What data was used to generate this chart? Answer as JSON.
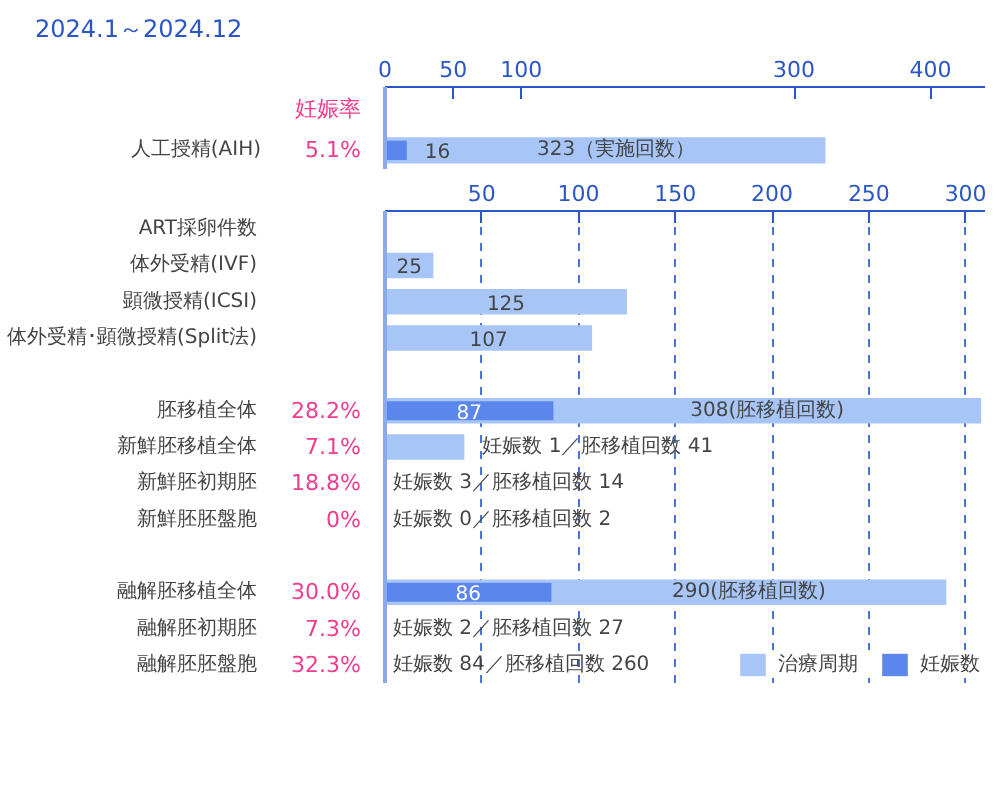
{
  "chart_data": [
    {
      "type": "bar",
      "orientation": "horizontal",
      "title": "2024.1～2024.12",
      "categories": [
        "人工授精(AIH)"
      ],
      "y2_categories": [
        "5.1%"
      ],
      "xlim": [
        0,
        440
      ],
      "xticks": [
        0,
        50,
        100,
        300,
        400
      ],
      "grid": false,
      "series": [
        {
          "color": "#a7c6f7",
          "values": [
            323
          ],
          "value_labels": [
            "323（実施回数）"
          ]
        },
        {
          "color": "#5b86ec",
          "values": [
            16
          ],
          "value_labels": [
            "16"
          ]
        }
      ],
      "annotations": [
        "妊娠率"
      ]
    },
    {
      "type": "bar",
      "orientation": "horizontal",
      "categories": [
        "ART採卵件数",
        "体外受精(IVF)",
        "顕微授精(ICSI)",
        "体外受精･顕微授精(Split法)",
        null,
        "胚移植全体",
        "新鮮胚移植全体",
        "新鮮胚初期胚",
        "新鮮胚胚盤胞",
        null,
        "融解胚移植全体",
        "融解胚初期胚",
        "融解胚胚盤胞"
      ],
      "y2_categories": [
        null,
        null,
        null,
        null,
        null,
        "28.2%",
        "7.1%",
        "18.8%",
        "0%",
        null,
        "30.0%",
        "7.3%",
        "32.3%"
      ],
      "xlim": [
        0,
        310
      ],
      "xticks": [
        50,
        100,
        150,
        200,
        250,
        300
      ],
      "grid": "x",
      "legend": "bottom right",
      "series": [
        {
          "name": "治療周期",
          "color": "#a7c6f7",
          "values": [
            null,
            25,
            125,
            107,
            null,
            308,
            41,
            null,
            null,
            null,
            290,
            null,
            null
          ],
          "value_labels": [
            null,
            "25",
            "125",
            "107",
            null,
            "308(胚移植回数)",
            "妊娠数 1／胚移植回数 41",
            "妊娠数 3／胚移植回数 14",
            "妊娠数 0／胚移植回数 2",
            null,
            "290(胚移植回数)",
            "妊娠数 2／胚移植回数 27",
            "妊娠数 84／胚移植回数 260"
          ]
        },
        {
          "name": "妊娠数",
          "color": "#5b86ec",
          "values": [
            null,
            null,
            null,
            null,
            null,
            87,
            null,
            null,
            null,
            null,
            86,
            null,
            null
          ],
          "value_labels": [
            null,
            null,
            null,
            null,
            null,
            "87",
            null,
            null,
            null,
            null,
            "86",
            null,
            null
          ]
        }
      ]
    }
  ]
}
